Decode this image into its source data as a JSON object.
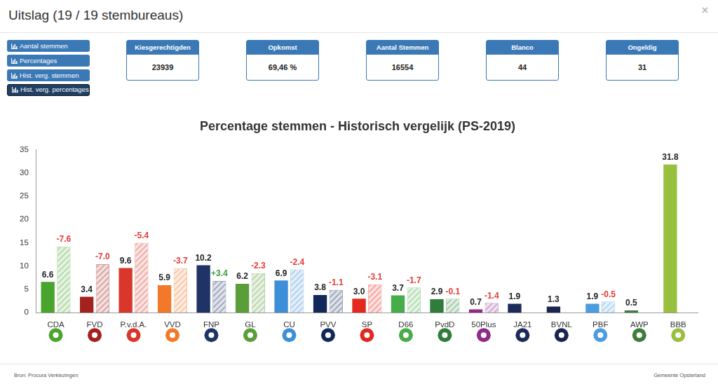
{
  "header": {
    "title": "Uitslag (19 / 19 stembureaus)",
    "close": "×"
  },
  "buttons": [
    {
      "label": "Aantal stemmen",
      "active": false
    },
    {
      "label": "Percentages",
      "active": false
    },
    {
      "label": "Hist. verg. stemmen",
      "active": false
    },
    {
      "label": "Hist. verg. percentages",
      "active": true
    }
  ],
  "stats": [
    {
      "label": "Kiesgerechtigden",
      "value": "23939"
    },
    {
      "label": "Opkomst",
      "value": "69,46 %"
    },
    {
      "label": "Aantal Stemmen",
      "value": "16554"
    },
    {
      "label": "Blanco",
      "value": "44"
    },
    {
      "label": "Ongeldig",
      "value": "31"
    }
  ],
  "chart_data": {
    "type": "bar",
    "title": "Percentage stemmen - Historisch vergelijk (PS-2019)",
    "categories": [
      "CDA",
      "FVD",
      "P.v.d.A.",
      "VVD",
      "FNP",
      "GL",
      "CU",
      "PVV",
      "SP",
      "D66",
      "PvdD",
      "50Plus",
      "JA21",
      "BVNL",
      "PBF",
      "AWP",
      "BBB"
    ],
    "colors": [
      "#4aa52e",
      "#a3221e",
      "#d9372b",
      "#f2792a",
      "#1f3366",
      "#5a9e3a",
      "#3d8fd8",
      "#13285a",
      "#e2281f",
      "#47ad4a",
      "#2e7d3a",
      "#8e2a8c",
      "#1c2a5a",
      "#1a2450",
      "#4b9de0",
      "#3f7d3c",
      "#97c03e"
    ],
    "series": [
      {
        "values": [
          6.6,
          3.4,
          9.6,
          5.9,
          10.2,
          6.2,
          6.9,
          3.8,
          3.0,
          3.7,
          2.9,
          0.7,
          1.9,
          1.3,
          1.9,
          0.5,
          31.8
        ],
        "value_labels": [
          "6.6",
          "3.4",
          "9.6",
          "5.9",
          "10.2",
          "6.2",
          "6.9",
          "3.8",
          "3.0",
          "3.7",
          "2.9",
          "0.7",
          "1.9",
          "1.3",
          "1.9",
          "0.5",
          "31.8"
        ]
      },
      {
        "values": [
          14.2,
          10.4,
          15.0,
          9.6,
          6.8,
          8.5,
          9.3,
          4.9,
          6.1,
          5.4,
          3.0,
          2.1,
          null,
          null,
          2.4,
          null,
          null
        ],
        "changes": [
          -7.6,
          -7.0,
          -5.4,
          -3.7,
          3.4,
          -2.3,
          -2.4,
          -1.1,
          -3.1,
          -1.7,
          -0.1,
          -1.4,
          null,
          null,
          -0.5,
          null,
          null
        ],
        "change_labels": [
          "-7.6",
          "-7.0",
          "-5.4",
          "-3.7",
          "+3.4",
          "-2.3",
          "-2.4",
          "-1.1",
          "-3.1",
          "-1.7",
          "-0.1",
          "-1.4",
          null,
          null,
          "-0.5",
          null,
          null
        ]
      }
    ],
    "ylim": [
      0,
      35
    ],
    "yticks": [
      0,
      5,
      10,
      15,
      20,
      25,
      30,
      35
    ],
    "grid": false,
    "data_labels": true
  },
  "footer": {
    "source": "Bron: Procura Verkiezingen",
    "owner": "Gemeente Opsterland"
  }
}
